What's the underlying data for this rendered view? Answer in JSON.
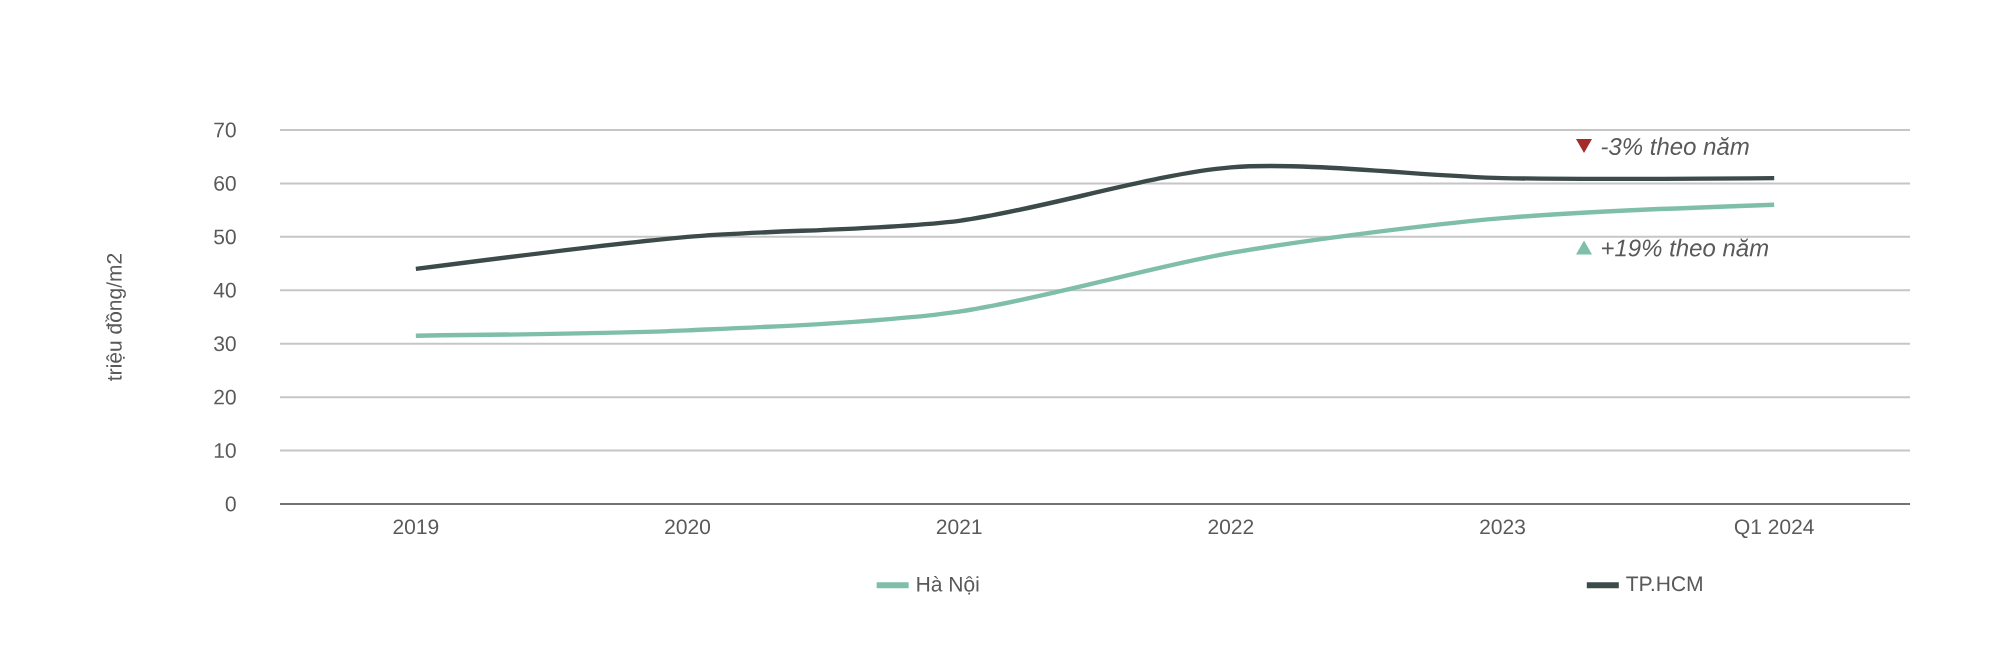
{
  "chart_data": {
    "type": "line",
    "ylabel": "triệu đồng/m2",
    "categories": [
      "2019",
      "2020",
      "2021",
      "2022",
      "2023",
      "Q1 2024"
    ],
    "series": [
      {
        "name": "Hà Nội",
        "color": "#7fbfa8",
        "values": [
          31.5,
          32.5,
          36,
          47,
          53.5,
          56
        ]
      },
      {
        "name": "TP.HCM",
        "color": "#3d4a4a",
        "values": [
          44,
          50,
          53,
          63,
          61,
          61
        ]
      }
    ],
    "ylim": [
      0,
      70
    ],
    "yticks": [
      0,
      10,
      20,
      30,
      40,
      50,
      60,
      70
    ],
    "grid": "y",
    "legend": "bottom",
    "marker": "none",
    "line_style": "solid",
    "annotations": [
      "-3% theo năm",
      "+19% theo năm"
    ]
  }
}
